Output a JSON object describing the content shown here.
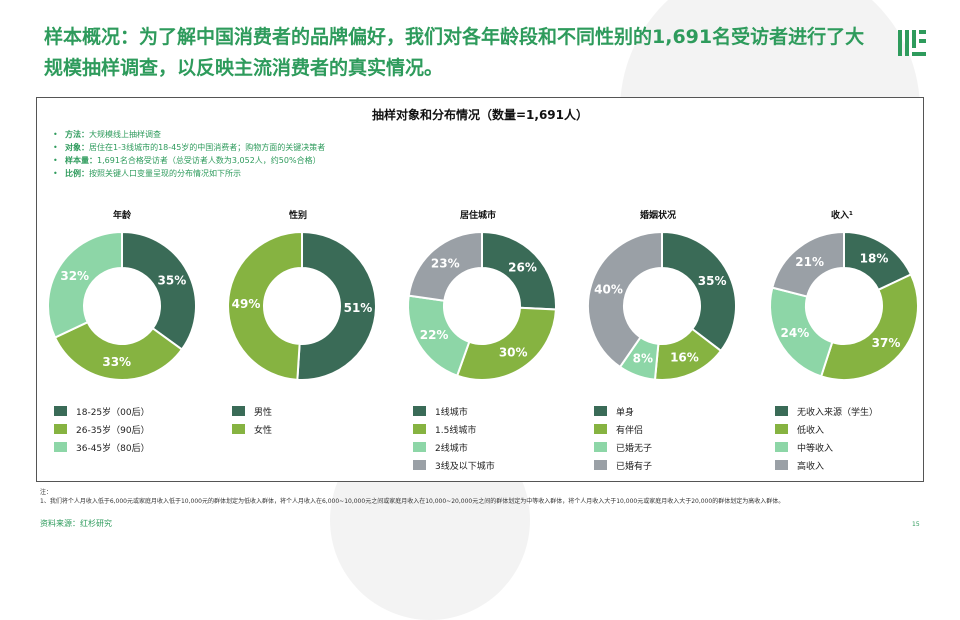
{
  "header": {
    "title": "样本概况：为了解中国消费者的品牌偏好，我们对各年龄段和不同性别的1,691名受访者进行了大规模抽样调查，以反映主流消费者的真实情况。"
  },
  "panel": {
    "title": "抽样对象和分布情况（数量=1,691人）",
    "bullets": [
      {
        "label": "方法：",
        "text": "大规模线上抽样调查"
      },
      {
        "label": "对象：",
        "text": "居住在1-3线城市的18-45岁的中国消费者；购物方面的关键决策者"
      },
      {
        "label": "样本量：",
        "text": "1,691名合格受访者（总受访者人数为3,052人，约50%合格）"
      },
      {
        "label": "比例：",
        "text": "按照关键人口变量呈现的分布情况如下所示"
      }
    ]
  },
  "colors": {
    "dark_green": "#3a6b57",
    "olive_green": "#86b341",
    "mint": "#8dd6a7",
    "gray": "#9aa0a6",
    "title_green": "#2e9b5c"
  },
  "chart_data": [
    {
      "type": "pie",
      "title": "年龄",
      "categories": [
        "18-25岁（00后）",
        "26-35岁（90后）",
        "36-45岁（80后）"
      ],
      "values": [
        35,
        33,
        32
      ],
      "labels": [
        "35%",
        "33%",
        "32%"
      ],
      "colors": [
        "#3a6b57",
        "#86b341",
        "#8dd6a7"
      ]
    },
    {
      "type": "pie",
      "title": "性别",
      "categories": [
        "男性",
        "女性"
      ],
      "values": [
        51,
        49
      ],
      "labels": [
        "51%",
        "49%"
      ],
      "colors": [
        "#3a6b57",
        "#86b341"
      ]
    },
    {
      "type": "pie",
      "title": "居住城市",
      "categories": [
        "1线城市",
        "1.5线城市",
        "2线城市",
        "3线及以下城市"
      ],
      "values": [
        26,
        30,
        22,
        23
      ],
      "labels": [
        "26%",
        "30%",
        "22%",
        "23%"
      ],
      "colors": [
        "#3a6b57",
        "#86b341",
        "#8dd6a7",
        "#9aa0a6"
      ]
    },
    {
      "type": "pie",
      "title": "婚姻状况",
      "categories": [
        "单身",
        "有伴侣",
        "已婚无子",
        "已婚有子"
      ],
      "values": [
        35,
        16,
        8,
        40
      ],
      "labels": [
        "35%",
        "16%",
        "8%",
        "40%"
      ],
      "colors": [
        "#3a6b57",
        "#86b341",
        "#8dd6a7",
        "#9aa0a6"
      ]
    },
    {
      "type": "pie",
      "title": "收入¹",
      "categories": [
        "无收入来源（学生）",
        "低收入",
        "中等收入",
        "高收入"
      ],
      "values": [
        18,
        37,
        24,
        21
      ],
      "labels": [
        "18%",
        "37%",
        "24%",
        "21%"
      ],
      "colors": [
        "#3a6b57",
        "#86b341",
        "#8dd6a7",
        "#9aa0a6"
      ]
    }
  ],
  "footer": {
    "note_label": "注：",
    "note_text": "1、我们将个人月收入低于6,000元或家庭月收入低于10,000元的群体划定为低收入群体，将个人月收入在6,000~10,000元之间或家庭月收入在10,000~20,000元之间的群体划定为中等收入群体，将个人月收入大于10,000元或家庭月收入大于20,000的群体划定为高收入群体。",
    "source": "资料来源：红杉研究",
    "page_number": "15"
  }
}
